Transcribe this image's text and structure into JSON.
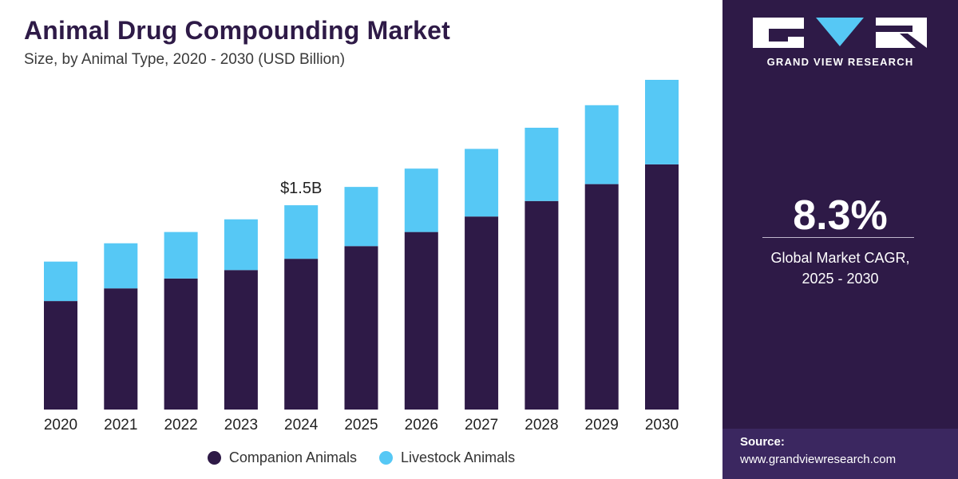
{
  "header": {
    "title": "Animal Drug Compounding Market",
    "subtitle": "Size, by Animal Type, 2020 - 2030 (USD Billion)"
  },
  "colors": {
    "companion": "#2e1a47",
    "livestock": "#56c8f5",
    "panel": "#2e1a47"
  },
  "chart_data": {
    "type": "bar",
    "stacked": true,
    "categories": [
      "2020",
      "2021",
      "2022",
      "2023",
      "2024",
      "2025",
      "2026",
      "2027",
      "2028",
      "2029",
      "2030"
    ],
    "series": [
      {
        "name": "Companion Animals",
        "values": [
          0.77,
          0.86,
          0.93,
          0.99,
          1.07,
          1.16,
          1.26,
          1.37,
          1.48,
          1.6,
          1.74
        ]
      },
      {
        "name": "Livestock Animals",
        "values": [
          0.28,
          0.32,
          0.33,
          0.36,
          0.38,
          0.42,
          0.45,
          0.48,
          0.52,
          0.56,
          0.6
        ]
      }
    ],
    "annotations": [
      {
        "category": "2024",
        "label": "$1.5B"
      }
    ],
    "ylim": [
      0,
      2.34
    ],
    "grid": false,
    "legend": "bottom-center"
  },
  "sidebar": {
    "brand": "GRAND VIEW RESEARCH",
    "logo_icon": "gvr-logo-icon",
    "cagr_value": "8.3%",
    "cagr_label": "Global Market CAGR,",
    "cagr_period": "2025 - 2030",
    "source_title": "Source:",
    "source_url": "www.grandviewresearch.com"
  }
}
